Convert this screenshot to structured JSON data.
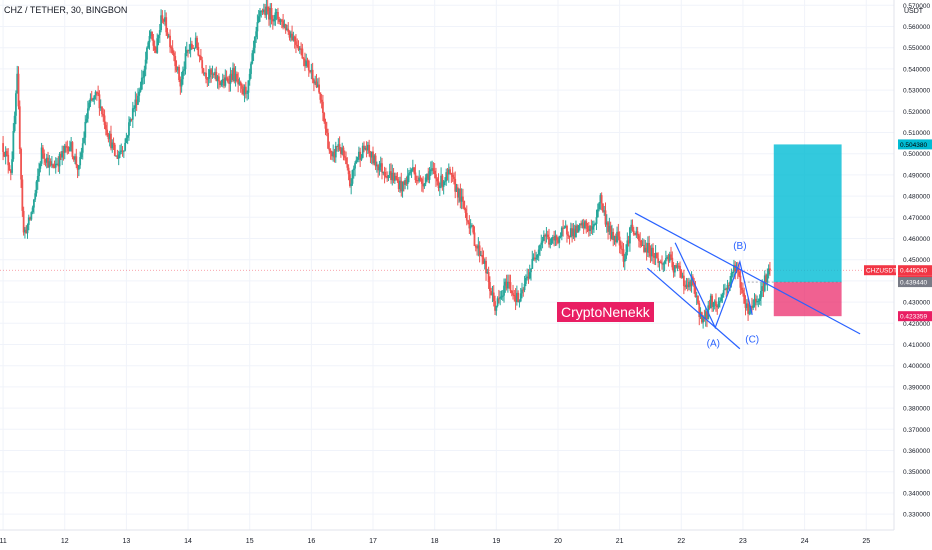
{
  "header": {
    "symbol_title": "CHZ / TETHER, 30, BINGBON",
    "currency": "USDT"
  },
  "watermark": "CryptoNenekk",
  "colors": {
    "up": "#26a69a",
    "down": "#ef5350",
    "trendline": "#2962ff",
    "target_zone": "#00bcd4",
    "stop_zone": "#e91e63",
    "price_line": "#f23645"
  },
  "chart_data": {
    "type": "candlestick",
    "symbol": "CHZ / TETHER",
    "timeframe": "30",
    "exchange": "BINGBON",
    "x_ticks": [
      "11",
      "12",
      "13",
      "14",
      "15",
      "16",
      "17",
      "18",
      "19",
      "20",
      "21",
      "22",
      "23",
      "24",
      "25"
    ],
    "y_ticks": [
      "0.330000",
      "0.340000",
      "0.350000",
      "0.360000",
      "0.370000",
      "0.380000",
      "0.390000",
      "0.400000",
      "0.410000",
      "0.420000",
      "0.430000",
      "0.440000",
      "0.450000",
      "0.460000",
      "0.470000",
      "0.480000",
      "0.490000",
      "0.500000",
      "0.510000",
      "0.520000",
      "0.530000",
      "0.540000",
      "0.550000",
      "0.560000",
      "0.570000"
    ],
    "ylim": [
      0.3225,
      0.5725
    ],
    "xlim": [
      10.95,
      25.45
    ],
    "price_path": [
      [
        11.0,
        0.505
      ],
      [
        11.15,
        0.492
      ],
      [
        11.25,
        0.535
      ],
      [
        11.35,
        0.462
      ],
      [
        11.45,
        0.468
      ],
      [
        11.55,
        0.482
      ],
      [
        11.65,
        0.502
      ],
      [
        11.8,
        0.493
      ],
      [
        11.95,
        0.498
      ],
      [
        12.1,
        0.505
      ],
      [
        12.25,
        0.492
      ],
      [
        12.4,
        0.522
      ],
      [
        12.55,
        0.528
      ],
      [
        12.7,
        0.512
      ],
      [
        12.85,
        0.498
      ],
      [
        13.0,
        0.505
      ],
      [
        13.1,
        0.518
      ],
      [
        13.2,
        0.527
      ],
      [
        13.3,
        0.538
      ],
      [
        13.4,
        0.556
      ],
      [
        13.5,
        0.548
      ],
      [
        13.6,
        0.566
      ],
      [
        13.7,
        0.556
      ],
      [
        13.8,
        0.546
      ],
      [
        13.9,
        0.532
      ],
      [
        14.0,
        0.548
      ],
      [
        14.15,
        0.552
      ],
      [
        14.3,
        0.538
      ],
      [
        14.45,
        0.536
      ],
      [
        14.6,
        0.533
      ],
      [
        14.75,
        0.538
      ],
      [
        14.9,
        0.528
      ],
      [
        15.0,
        0.532
      ],
      [
        15.1,
        0.552
      ],
      [
        15.2,
        0.568
      ],
      [
        15.35,
        0.566
      ],
      [
        15.5,
        0.564
      ],
      [
        15.65,
        0.558
      ],
      [
        15.8,
        0.552
      ],
      [
        15.95,
        0.542
      ],
      [
        16.05,
        0.537
      ],
      [
        16.15,
        0.528
      ],
      [
        16.25,
        0.512
      ],
      [
        16.35,
        0.496
      ],
      [
        16.45,
        0.505
      ],
      [
        16.55,
        0.498
      ],
      [
        16.65,
        0.485
      ],
      [
        16.75,
        0.498
      ],
      [
        16.9,
        0.503
      ],
      [
        17.05,
        0.496
      ],
      [
        17.2,
        0.492
      ],
      [
        17.35,
        0.489
      ],
      [
        17.5,
        0.484
      ],
      [
        17.65,
        0.493
      ],
      [
        17.8,
        0.486
      ],
      [
        17.95,
        0.492
      ],
      [
        18.1,
        0.486
      ],
      [
        18.25,
        0.49
      ],
      [
        18.4,
        0.482
      ],
      [
        18.5,
        0.474
      ],
      [
        18.6,
        0.466
      ],
      [
        18.7,
        0.456
      ],
      [
        18.8,
        0.452
      ],
      [
        18.9,
        0.438
      ],
      [
        19.0,
        0.428
      ],
      [
        19.1,
        0.432
      ],
      [
        19.2,
        0.44
      ],
      [
        19.3,
        0.434
      ],
      [
        19.4,
        0.43
      ],
      [
        19.5,
        0.44
      ],
      [
        19.6,
        0.448
      ],
      [
        19.7,
        0.456
      ],
      [
        19.8,
        0.462
      ],
      [
        19.9,
        0.458
      ],
      [
        20.0,
        0.46
      ],
      [
        20.15,
        0.464
      ],
      [
        20.3,
        0.463
      ],
      [
        20.45,
        0.466
      ],
      [
        20.6,
        0.464
      ],
      [
        20.7,
        0.48
      ],
      [
        20.8,
        0.468
      ],
      [
        20.9,
        0.46
      ],
      [
        21.0,
        0.462
      ],
      [
        21.1,
        0.45
      ],
      [
        21.2,
        0.466
      ],
      [
        21.3,
        0.46
      ],
      [
        21.4,
        0.456
      ],
      [
        21.5,
        0.455
      ],
      [
        21.6,
        0.452
      ],
      [
        21.7,
        0.447
      ],
      [
        21.8,
        0.452
      ],
      [
        21.9,
        0.445
      ],
      [
        22.0,
        0.446
      ],
      [
        22.1,
        0.436
      ],
      [
        22.2,
        0.44
      ],
      [
        22.3,
        0.426
      ],
      [
        22.4,
        0.421
      ],
      [
        22.5,
        0.431
      ],
      [
        22.6,
        0.428
      ],
      [
        22.7,
        0.435
      ],
      [
        22.8,
        0.439
      ],
      [
        22.9,
        0.448
      ],
      [
        23.0,
        0.436
      ],
      [
        23.1,
        0.426
      ],
      [
        23.2,
        0.43
      ],
      [
        23.3,
        0.434
      ],
      [
        23.4,
        0.442
      ],
      [
        23.45,
        0.4455
      ]
    ],
    "current_price": 0.44504,
    "annotations": {
      "symbol_tag": "CHZUSDT",
      "current_price_label": "0.445040",
      "countdown": "04:51",
      "entry_price_label": "0.439440",
      "target_price_label": "0.504380",
      "stop_price_label": "0.423359",
      "wave_labels": [
        "(A)",
        "(B)",
        "(C)"
      ]
    },
    "position": {
      "type": "long",
      "entry": 0.43944,
      "target": 0.50438,
      "stop": 0.423359,
      "x_start": 23.5,
      "x_end": 24.6
    },
    "trendlines": [
      {
        "from": [
          21.25,
          0.472
        ],
        "to": [
          24.9,
          0.415
        ]
      },
      {
        "from": [
          21.45,
          0.446
        ],
        "to": [
          22.95,
          0.408
        ]
      }
    ],
    "wave_path": [
      [
        21.9,
        0.458
      ],
      [
        22.55,
        0.418
      ],
      [
        22.95,
        0.449
      ],
      [
        23.15,
        0.424
      ]
    ],
    "wave_label_points": {
      "(A)": [
        22.52,
        0.409
      ],
      "(B)": [
        22.95,
        0.455
      ],
      "(C)": [
        23.15,
        0.411
      ]
    },
    "grid": true
  }
}
